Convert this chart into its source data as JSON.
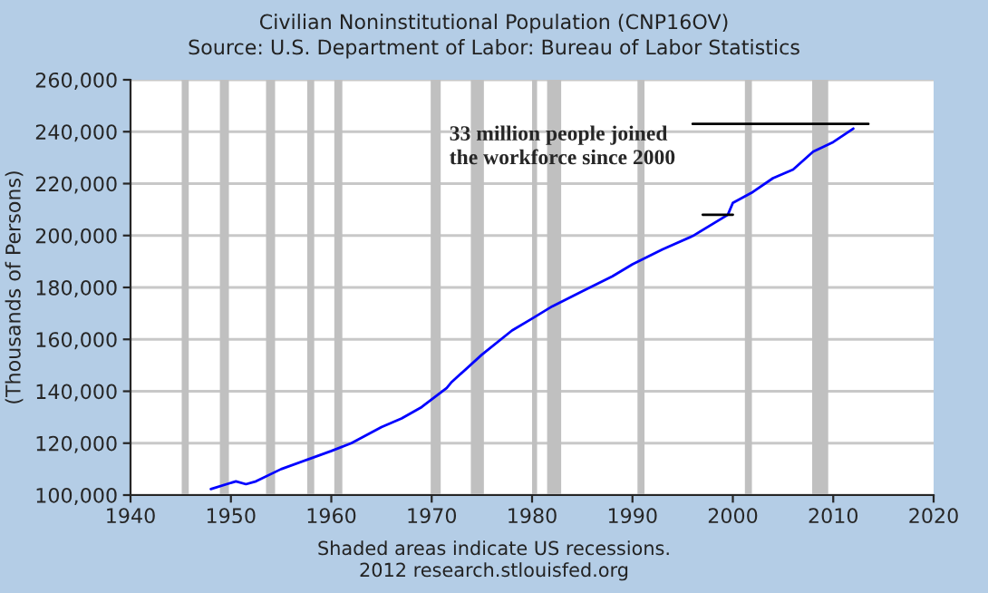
{
  "chart_data": {
    "type": "line",
    "title": "Civilian Noninstitutional Population (CNP16OV)",
    "subtitle": "Source: U.S. Department of Labor: Bureau of Labor Statistics",
    "ylabel": "(Thousands of Persons)",
    "series": [
      {
        "color": "#0000ff",
        "x": [
          1948,
          1950.5,
          1951.5,
          1952.5,
          1955,
          1958,
          1960,
          1962,
          1965,
          1967,
          1969,
          1971.5,
          1972,
          1975,
          1978,
          1980,
          1982,
          1985,
          1988,
          1990,
          1993,
          1996,
          1999.5,
          2000,
          2002,
          2004,
          2006,
          2008,
          2010,
          2012
        ],
        "values": [
          102300,
          105300,
          104200,
          105300,
          110000,
          114200,
          117000,
          120000,
          126200,
          129500,
          133900,
          141300,
          143600,
          154100,
          163400,
          168000,
          172700,
          178500,
          184300,
          188900,
          194700,
          199800,
          208000,
          212600,
          216800,
          222100,
          225400,
          232300,
          236000,
          241200
        ]
      },
      {
        "color": "#000000",
        "x": [
          1996,
          2013.5
        ],
        "values": [
          243000,
          243000
        ]
      },
      {
        "color": "#000000",
        "x": [
          1997,
          2000
        ],
        "values": [
          208000,
          208000
        ]
      }
    ],
    "bands": [
      {
        "axis": "x",
        "from": 1945.1,
        "to": 1945.8,
        "color": "#c0c0c0"
      },
      {
        "axis": "x",
        "from": 1948.9,
        "to": 1949.8,
        "color": "#c0c0c0"
      },
      {
        "axis": "x",
        "from": 1953.5,
        "to": 1954.4,
        "color": "#c0c0c0"
      },
      {
        "axis": "x",
        "from": 1957.6,
        "to": 1958.3,
        "color": "#c0c0c0"
      },
      {
        "axis": "x",
        "from": 1960.3,
        "to": 1961.1,
        "color": "#c0c0c0"
      },
      {
        "axis": "x",
        "from": 1969.9,
        "to": 1970.9,
        "color": "#c0c0c0"
      },
      {
        "axis": "x",
        "from": 1973.9,
        "to": 1975.2,
        "color": "#c0c0c0"
      },
      {
        "axis": "x",
        "from": 1980.0,
        "to": 1980.5,
        "color": "#c0c0c0"
      },
      {
        "axis": "x",
        "from": 1981.5,
        "to": 1982.9,
        "color": "#c0c0c0"
      },
      {
        "axis": "x",
        "from": 1990.5,
        "to": 1991.2,
        "color": "#c0c0c0"
      },
      {
        "axis": "x",
        "from": 2001.2,
        "to": 2001.9,
        "color": "#c0c0c0"
      },
      {
        "axis": "x",
        "from": 2007.9,
        "to": 2009.5,
        "color": "#c0c0c0"
      }
    ],
    "annotations": [
      "33 million people joined\nthe workforce since 2000",
      "Shaded areas indicate US recessions.",
      "2012 research.stlouisfed.org"
    ],
    "xlim": [
      1940,
      2020
    ],
    "xticks": [
      1940,
      1950,
      1960,
      1970,
      1980,
      1990,
      2000,
      2010,
      2020
    ],
    "ylim": [
      100000,
      260000
    ],
    "yticks": [
      {
        "value": 100000,
        "label": "100,000"
      },
      {
        "value": 120000,
        "label": "120,000"
      },
      {
        "value": 140000,
        "label": "140,000"
      },
      {
        "value": 160000,
        "label": "160,000"
      },
      {
        "value": 180000,
        "label": "180,000"
      },
      {
        "value": 200000,
        "label": "200,000"
      },
      {
        "value": 220000,
        "label": "220,000"
      },
      {
        "value": 240000,
        "label": "240,000"
      },
      {
        "value": 260000,
        "label": "260,000"
      }
    ],
    "grid": "y",
    "legend": false
  }
}
